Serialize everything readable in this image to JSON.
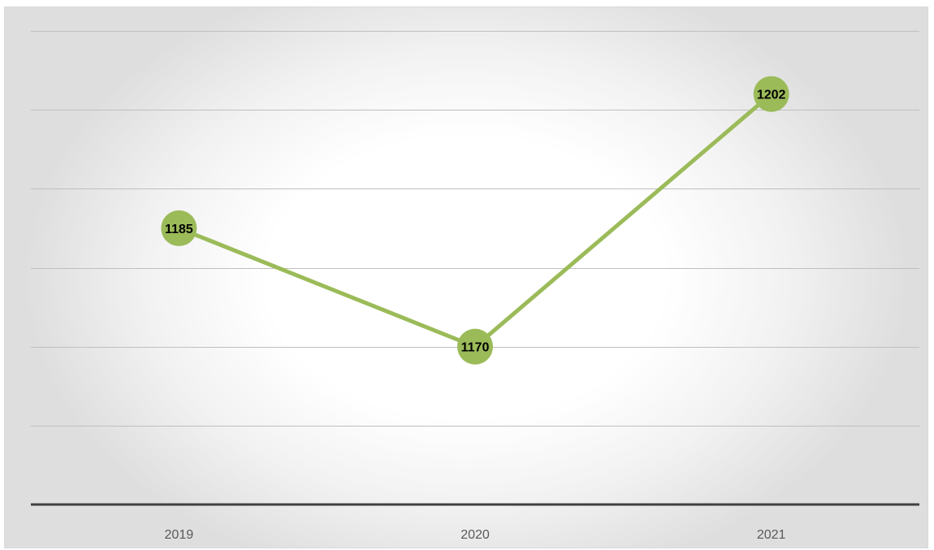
{
  "chart_data": {
    "type": "line",
    "title": "",
    "xlabel": "",
    "ylabel": "",
    "categories": [
      "2019",
      "2020",
      "2021"
    ],
    "series": [
      {
        "values": [
          1185,
          1170,
          1202
        ],
        "color": "#9bbb59"
      }
    ],
    "ylim": [
      1150,
      1210
    ],
    "gridlines": true,
    "data_labels": true,
    "y_axis_labels_visible": false,
    "legend": "none"
  }
}
